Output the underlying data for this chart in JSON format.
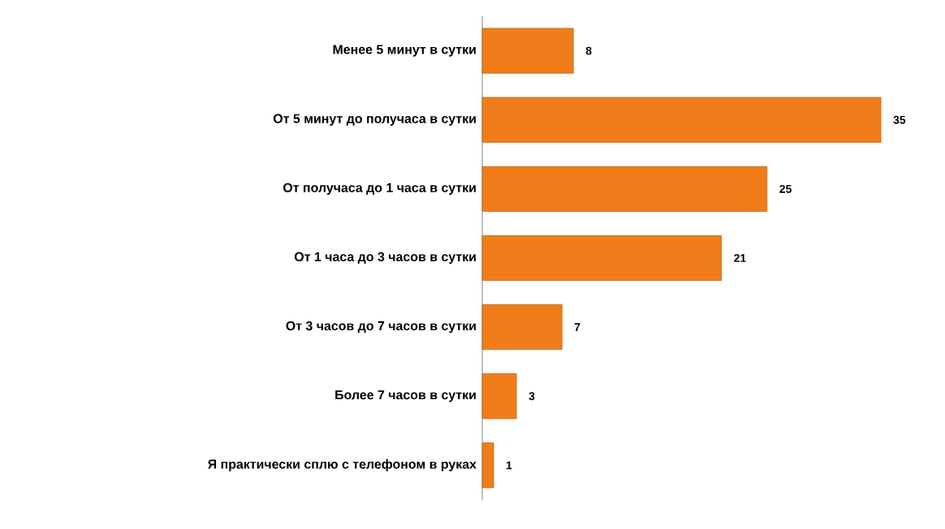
{
  "chart_data": {
    "type": "bar",
    "orientation": "horizontal",
    "categories": [
      "Менее 5 минут в сутки",
      "От 5 минут до получаса в сутки",
      "От получаса до 1 часа в сутки",
      "От 1 часа до 3 часов в сутки",
      "От 3 часов до 7 часов в сутки",
      "Более 7 часов в сутки",
      "Я практически сплю с телефоном в руках"
    ],
    "values": [
      8,
      35,
      25,
      21,
      7,
      3,
      1
    ],
    "color": "#f07d1a",
    "data_labels": true
  }
}
